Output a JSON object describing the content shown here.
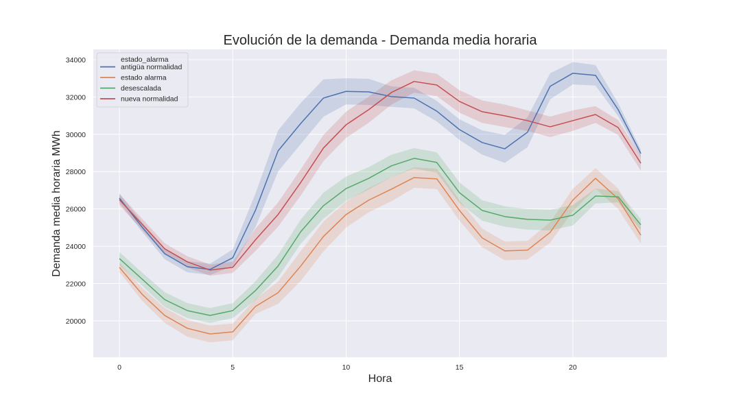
{
  "chart_data": {
    "type": "line",
    "title": "Evolución de la demanda - Demanda media horaria",
    "xlabel": "Hora",
    "ylabel": "Demanda media horaria MWh",
    "xlim": [
      -1.15,
      24.15
    ],
    "ylim": [
      18050,
      34550
    ],
    "xticks": [
      0,
      5,
      10,
      15,
      20
    ],
    "xtick_labels": [
      "0",
      "5",
      "10",
      "15",
      "20"
    ],
    "yticks": [
      20000,
      22000,
      24000,
      26000,
      28000,
      30000,
      32000,
      34000
    ],
    "ytick_labels": [
      "20000",
      "22000",
      "24000",
      "26000",
      "28000",
      "30000",
      "32000",
      "34000"
    ],
    "grid": true,
    "legend": {
      "title": "estado_alarma",
      "placement": "top-left"
    },
    "x": [
      0,
      1,
      2,
      3,
      4,
      5,
      6,
      7,
      8,
      9,
      10,
      11,
      12,
      13,
      14,
      15,
      16,
      17,
      18,
      19,
      20,
      21,
      22,
      23
    ],
    "series": [
      {
        "name": "antigüa normalidad",
        "color": "#4c72b0",
        "values": [
          26580,
          25030,
          23600,
          22900,
          22760,
          23380,
          25920,
          29110,
          30580,
          31940,
          32300,
          32270,
          32020,
          31940,
          31240,
          30250,
          29560,
          29220,
          30110,
          32570,
          33270,
          33160,
          31320,
          28970
        ],
        "ci": [
          250,
          250,
          300,
          300,
          300,
          450,
          900,
          1100,
          1100,
          1000,
          700,
          700,
          550,
          550,
          550,
          550,
          650,
          750,
          800,
          700,
          600,
          550,
          350,
          200
        ]
      },
      {
        "name": "estado alarma",
        "color": "#dd8452",
        "values": [
          22870,
          21430,
          20290,
          19600,
          19300,
          19410,
          20770,
          21510,
          22940,
          24520,
          25700,
          26470,
          27060,
          27680,
          27610,
          25920,
          24450,
          23750,
          23790,
          24740,
          26470,
          27640,
          26540,
          24590
        ],
        "ci": [
          250,
          350,
          400,
          450,
          450,
          450,
          400,
          600,
          800,
          800,
          700,
          650,
          650,
          550,
          550,
          550,
          500,
          500,
          500,
          550,
          600,
          550,
          550,
          450
        ]
      },
      {
        "name": "desescalada",
        "color": "#55a868",
        "values": [
          23340,
          22240,
          21140,
          20550,
          20290,
          20550,
          21620,
          22940,
          24780,
          26170,
          27090,
          27640,
          28310,
          28710,
          28490,
          26870,
          25920,
          25590,
          25440,
          25400,
          25660,
          26690,
          26650,
          25150
        ],
        "ci": [
          350,
          350,
          400,
          400,
          400,
          400,
          500,
          600,
          650,
          700,
          650,
          600,
          600,
          550,
          550,
          550,
          550,
          550,
          550,
          550,
          550,
          400,
          300,
          300
        ]
      },
      {
        "name": "nueva normalidad",
        "color": "#c44e52",
        "values": [
          26500,
          25180,
          23860,
          23160,
          22720,
          22870,
          24340,
          25700,
          27420,
          29260,
          30510,
          31320,
          32240,
          32830,
          32640,
          31760,
          31210,
          30990,
          30730,
          30400,
          30730,
          31060,
          30360,
          28450
        ],
        "ci": [
          300,
          300,
          300,
          300,
          300,
          300,
          600,
          650,
          700,
          700,
          700,
          700,
          650,
          600,
          600,
          600,
          600,
          600,
          550,
          550,
          550,
          450,
          400,
          400
        ]
      }
    ]
  }
}
